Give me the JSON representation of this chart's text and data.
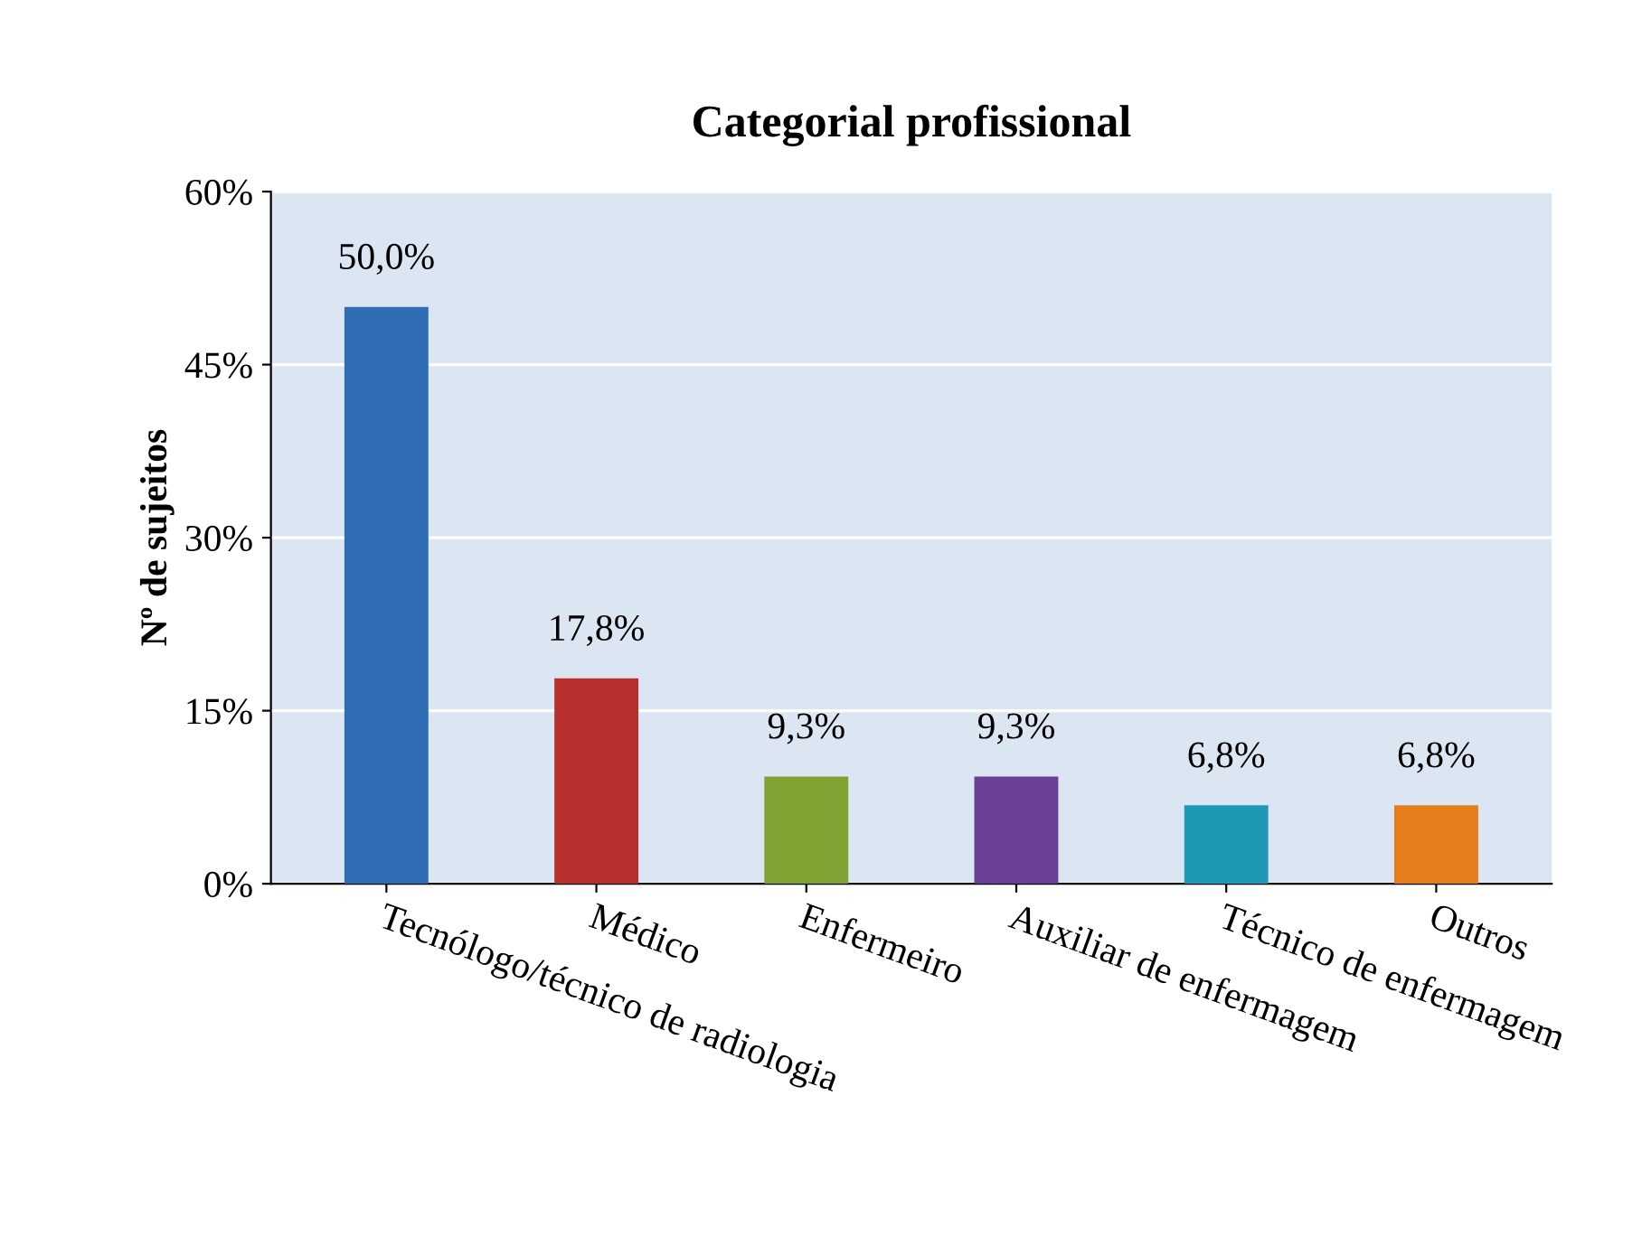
{
  "chart_data": {
    "type": "bar",
    "title": "Categorial profissional",
    "ylabel": "Nº de sujeitos",
    "categories": [
      "Tecnólogo/técnico de radiologia",
      "Médico",
      "Enfermeiro",
      "Auxiliar de enfermagem",
      "Técnico de enfermagem",
      "Outros"
    ],
    "values": [
      50.0,
      17.8,
      9.3,
      9.3,
      6.8,
      6.8
    ],
    "value_labels": [
      "50,0%",
      "17,8%",
      "9,3%",
      "9,3%",
      "6,8%",
      "6,8%"
    ],
    "colors": [
      "#2f6db5",
      "#b8302e",
      "#7fa232",
      "#6b3f95",
      "#1f98b5",
      "#e57d1c"
    ],
    "ylim": [
      0,
      60
    ],
    "yticks": [
      {
        "value": 0,
        "label": "0%"
      },
      {
        "value": 15,
        "label": "15%"
      },
      {
        "value": 30,
        "label": "30%"
      },
      {
        "value": 45,
        "label": "45%"
      },
      {
        "value": 60,
        "label": "60%"
      }
    ],
    "grid": "y",
    "legend": false
  }
}
